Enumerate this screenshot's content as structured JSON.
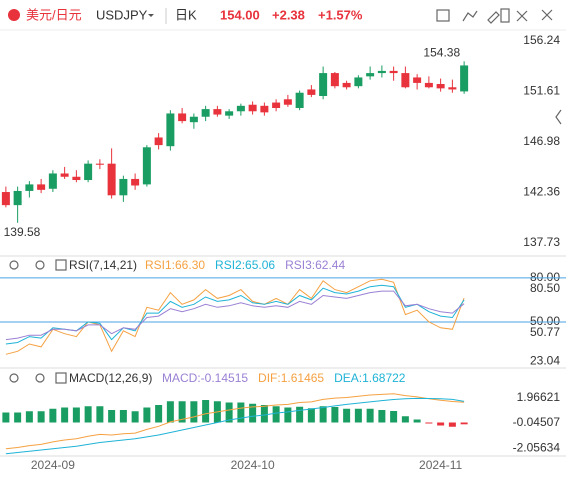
{
  "header": {
    "pair": "美元/日元",
    "symbol": "USDJPY",
    "period": "日K",
    "price": "154.00",
    "change": "+2.38",
    "change_pct": "+1.57%"
  },
  "chart_data": [
    {
      "type": "candlestick",
      "categories": [
        null,
        null,
        null,
        null,
        "2024-09",
        null,
        null,
        null,
        null,
        null,
        null,
        null,
        null,
        null,
        null,
        null,
        null,
        null,
        null,
        null,
        null,
        "2024-10",
        null,
        null,
        null,
        null,
        null,
        null,
        null,
        null,
        null,
        null,
        null,
        null,
        null,
        null,
        null,
        "2024-11",
        null,
        null
      ],
      "open": [
        142.4,
        141.2,
        142.5,
        143.1,
        142.7,
        144.1,
        143.8,
        143.5,
        145.0,
        145.0,
        142.1,
        143.6,
        143.1,
        147.4,
        146.6,
        149.6,
        148.8,
        149.3,
        150.0,
        149.4,
        149.8,
        150.4,
        150.3,
        150.6,
        150.9,
        150.1,
        151.8,
        151.2,
        153.3,
        152.4,
        152.1,
        153.0,
        153.3,
        153.5,
        153.3,
        152.9,
        152.4,
        152.3,
        152.0,
        151.62
      ],
      "high": [
        142.9,
        142.9,
        143.4,
        143.6,
        144.4,
        144.7,
        144.4,
        145.3,
        145.4,
        146.4,
        143.9,
        144.1,
        146.7,
        147.8,
        149.9,
        150.1,
        149.6,
        150.3,
        150.3,
        150.0,
        150.5,
        150.7,
        150.6,
        150.9,
        151.3,
        151.7,
        152.2,
        153.9,
        153.4,
        152.6,
        153.1,
        153.9,
        154.0,
        153.9,
        153.9,
        153.2,
        153.0,
        152.8,
        152.7,
        154.38
      ],
      "low": [
        141.0,
        139.58,
        141.9,
        142.3,
        142.4,
        143.6,
        143.3,
        143.3,
        144.5,
        141.8,
        141.5,
        142.6,
        142.9,
        146.3,
        146.2,
        148.7,
        148.2,
        148.9,
        149.3,
        149.1,
        149.4,
        149.5,
        149.4,
        149.8,
        150.2,
        149.9,
        151.1,
        150.9,
        151.9,
        151.8,
        151.9,
        152.7,
        152.9,
        152.6,
        151.9,
        151.8,
        151.9,
        151.6,
        151.5,
        151.4
      ],
      "close": [
        141.2,
        142.5,
        143.1,
        142.6,
        144.1,
        143.8,
        143.5,
        145.0,
        144.9,
        142.1,
        143.6,
        143.0,
        146.5,
        146.7,
        149.6,
        148.9,
        149.3,
        150.0,
        149.5,
        149.8,
        150.3,
        149.8,
        149.7,
        150.1,
        150.4,
        151.5,
        151.3,
        153.3,
        152.1,
        152.0,
        152.9,
        153.3,
        153.5,
        153.3,
        152.0,
        152.4,
        152.0,
        151.9,
        151.8,
        154.0
      ],
      "up_color": "#1a9d62",
      "down_color": "#e8323c",
      "ylim": [
        137.73,
        156.24
      ],
      "yticks": [
        156.24,
        151.61,
        146.98,
        142.36,
        137.73
      ]
    },
    {
      "type": "line",
      "title": "RSI(7,14,21)",
      "series": [
        {
          "name": "RSI1:66.30",
          "color": "#f5a142",
          "values": [
            28,
            30,
            35,
            33,
            45,
            42,
            40,
            50,
            48,
            30,
            44,
            40,
            60,
            58,
            70,
            62,
            65,
            72,
            66,
            68,
            72,
            64,
            62,
            66,
            62,
            72,
            66,
            78,
            72,
            70,
            74,
            78,
            79,
            77,
            55,
            58,
            50,
            46,
            45,
            66.3
          ]
        },
        {
          "name": "RSI2:65.06",
          "color": "#1fb3d6",
          "values": [
            35,
            36,
            40,
            39,
            46,
            45,
            44,
            50,
            49,
            38,
            46,
            44,
            56,
            56,
            64,
            60,
            62,
            67,
            64,
            65,
            68,
            63,
            62,
            64,
            62,
            68,
            65,
            73,
            70,
            69,
            71,
            74,
            75,
            74,
            60,
            62,
            57,
            54,
            53,
            65.06
          ]
        },
        {
          "name": "RSI3:62.44",
          "color": "#9a80d4",
          "values": [
            38,
            39,
            41,
            41,
            45,
            45,
            44,
            48,
            48,
            42,
            46,
            45,
            53,
            54,
            59,
            57,
            59,
            62,
            60,
            61,
            63,
            61,
            60,
            61,
            60,
            64,
            62,
            68,
            67,
            66,
            68,
            70,
            71,
            71,
            61,
            62,
            59,
            57,
            56,
            62.44
          ]
        }
      ],
      "reference_lines": [
        80,
        50
      ],
      "reference_color": "#4aa3e6",
      "ylim": [
        20,
        84
      ],
      "yticks": [
        {
          "value": 80,
          "label": "80.00"
        },
        {
          "value": 80.5,
          "label": "80.50"
        },
        {
          "value": 50,
          "label": "50.00"
        },
        {
          "value": 50.77,
          "label": "50.77"
        },
        23.04
      ]
    },
    {
      "type": "macd",
      "title": "MACD(12,26,9)",
      "histogram": {
        "name": "MACD:-0.14515",
        "color": "#9a80d4",
        "up_color": "#1a9d62",
        "down_color": "#e8323c",
        "values": [
          0.8,
          0.8,
          0.9,
          0.9,
          1.1,
          1.2,
          1.2,
          1.3,
          1.3,
          1.0,
          1.0,
          0.9,
          1.2,
          1.4,
          1.7,
          1.7,
          1.7,
          1.8,
          1.7,
          1.6,
          1.6,
          1.5,
          1.4,
          1.3,
          1.2,
          1.26,
          1.14,
          1.3,
          1.24,
          1.1,
          1.1,
          1.1,
          1.0,
          0.92,
          0.5,
          0.24,
          -0.04,
          -0.24,
          -0.34,
          -0.14515
        ]
      },
      "series": [
        {
          "name": "DIF:1.61465",
          "color": "#f5a142",
          "values": [
            -2.1,
            -2.0,
            -1.85,
            -1.75,
            -1.55,
            -1.4,
            -1.3,
            -1.1,
            -0.95,
            -1.0,
            -0.9,
            -0.85,
            -0.55,
            -0.3,
            0.05,
            0.25,
            0.45,
            0.7,
            0.85,
            1.0,
            1.15,
            1.25,
            1.3,
            1.4,
            1.45,
            1.6,
            1.65,
            1.85,
            1.95,
            2.0,
            2.1,
            2.2,
            2.25,
            2.3,
            2.15,
            2.05,
            1.9,
            1.78,
            1.68,
            1.61465
          ]
        },
        {
          "name": "DEA:1.68722",
          "color": "#1fb3d6",
          "values": [
            -2.5,
            -2.4,
            -2.3,
            -2.2,
            -2.1,
            -2.0,
            -1.9,
            -1.75,
            -1.6,
            -1.5,
            -1.4,
            -1.3,
            -1.15,
            -1.0,
            -0.8,
            -0.6,
            -0.4,
            -0.2,
            0.0,
            0.2,
            0.35,
            0.5,
            0.6,
            0.75,
            0.85,
            0.97,
            1.08,
            1.2,
            1.33,
            1.45,
            1.55,
            1.65,
            1.75,
            1.84,
            1.9,
            1.93,
            1.92,
            1.9,
            1.85,
            1.68722
          ]
        }
      ],
      "ylim": [
        -2.6,
        3.0
      ],
      "yticks": [
        1.96621,
        -0.04507,
        -2.05634
      ]
    }
  ]
}
